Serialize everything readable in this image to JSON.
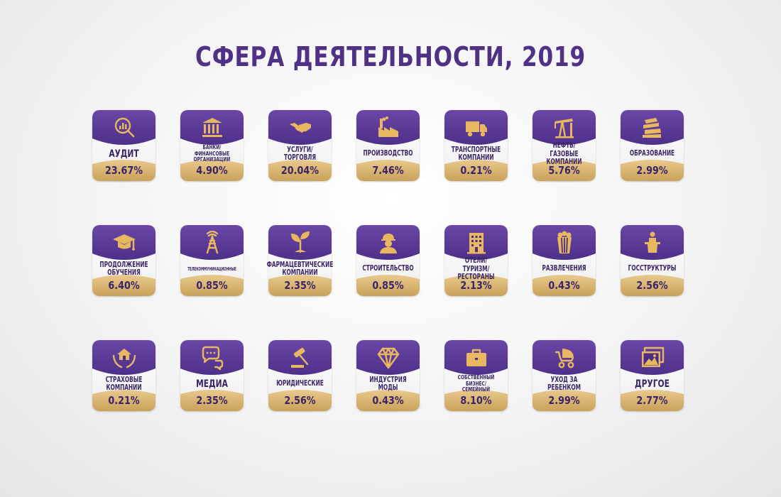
{
  "title": "СФЕРА ДЕЯТЕЛЬНОСТИ, 2019",
  "colors": {
    "purple": "#4f3185",
    "gold": "#e8b861",
    "text": "#3b2466"
  },
  "cards": [
    {
      "label": "АУДИТ",
      "value": "23.67%",
      "icon": "magnifier-chart-icon"
    },
    {
      "label": "БАНКИ/\nФИНАНСОВЫЕ\nОРГАНИЗАЦИИ",
      "value": "4.90%",
      "icon": "bank-icon"
    },
    {
      "label": "УСЛУГИ/\nТОРГОВЛЯ",
      "value": "20.04%",
      "icon": "handshake-icon"
    },
    {
      "label": "ПРОИЗВОДСТВО",
      "value": "7.46%",
      "icon": "factory-icon"
    },
    {
      "label": "ТРАНСПОРТНЫЕ\nКОМПАНИИ",
      "value": "0.21%",
      "icon": "truck-icon"
    },
    {
      "label": "НЕФТЬ/ГАЗОВЫЕ\nКОМПАНИИ",
      "value": "5.76%",
      "icon": "oil-pump-icon"
    },
    {
      "label": "ОБРАЗОВАНИЕ",
      "value": "2.99%",
      "icon": "books-icon"
    },
    {
      "label": "ПРОДОЛЖЕНИЕ\nОБУЧЕНИЯ",
      "value": "6.40%",
      "icon": "graduation-cap-icon"
    },
    {
      "label": "ТЕЛЕКОММУНИКАЦИОННЫЕ",
      "value": "0.85%",
      "icon": "antenna-tower-icon"
    },
    {
      "label": "ФАРМАЦЕВТИЧЕСКИЕ\nКОМПАНИИ",
      "value": "2.35%",
      "icon": "sprout-icon"
    },
    {
      "label": "СТРОИТЕЛЬСТВО",
      "value": "0.85%",
      "icon": "builder-helmet-icon"
    },
    {
      "label": "ОТЕЛИ/ТУРИЗМ/\nРЕСТОРАНЫ",
      "value": "2.13%",
      "icon": "hotel-building-icon"
    },
    {
      "label": "РАЗВЛЕЧЕНИЯ",
      "value": "0.43%",
      "icon": "popcorn-icon"
    },
    {
      "label": "ГОССТРУКТУРЫ",
      "value": "2.56%",
      "icon": "speaker-podium-icon"
    },
    {
      "label": "СТРАХОВЫЕ\nКОМПАНИИ",
      "value": "0.21%",
      "icon": "house-hands-icon"
    },
    {
      "label": "МЕДИА",
      "value": "2.35%",
      "icon": "chat-bubbles-icon"
    },
    {
      "label": "ЮРИДИЧЕСКИЕ",
      "value": "2.56%",
      "icon": "gavel-icon"
    },
    {
      "label": "ИНДУСТРИЯ\nМОДЫ",
      "value": "0.43%",
      "icon": "diamond-icon"
    },
    {
      "label": "СОБСТВЕННЫЙ\nБИЗНЕС/\nСЕМЕЙНЫЙ",
      "value": "8.10%",
      "icon": "briefcase-icon"
    },
    {
      "label": "УХОД ЗА\nРЕБЕНКОМ",
      "value": "2.99%",
      "icon": "baby-stroller-icon"
    },
    {
      "label": "ДРУГОЕ",
      "value": "2.77%",
      "icon": "pictures-icon"
    }
  ]
}
